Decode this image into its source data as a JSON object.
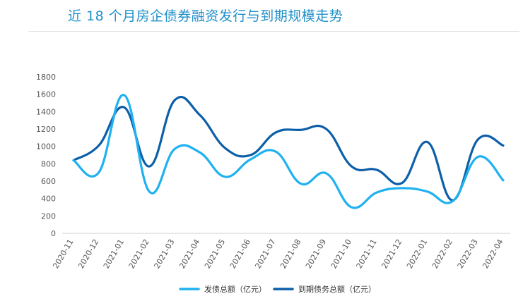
{
  "title": "近 18 个月房企债券融资发行与到期规模走势",
  "chart_data": {
    "type": "line",
    "title": "近 18 个月房企债券融资发行与到期规模走势",
    "xlabel": "",
    "ylabel": "",
    "ylim": [
      0,
      1800
    ],
    "yticks": [
      0,
      200,
      400,
      600,
      800,
      1000,
      1200,
      1400,
      1600,
      1800
    ],
    "grid": false,
    "legend_position": "bottom",
    "categories": [
      "2020-11",
      "2020-12",
      "2021-01",
      "2021-02",
      "2021-03",
      "2021-04",
      "2021-05",
      "2021-06",
      "2021-07",
      "2021-08",
      "2021-09",
      "2021-10",
      "2021-11",
      "2021-12",
      "2022-01",
      "2022-02",
      "2022-03",
      "2022-04"
    ],
    "series": [
      {
        "name": "发债总额（亿元）",
        "color": "#1fb1f0",
        "values": [
          840,
          700,
          1590,
          480,
          970,
          930,
          650,
          850,
          940,
          570,
          690,
          300,
          470,
          520,
          480,
          370,
          880,
          610
        ]
      },
      {
        "name": "到期债务总额（亿元）",
        "color": "#0c5fa8",
        "values": [
          840,
          1010,
          1450,
          770,
          1530,
          1360,
          980,
          900,
          1160,
          1190,
          1200,
          770,
          730,
          580,
          1050,
          380,
          1080,
          1010
        ]
      }
    ]
  }
}
